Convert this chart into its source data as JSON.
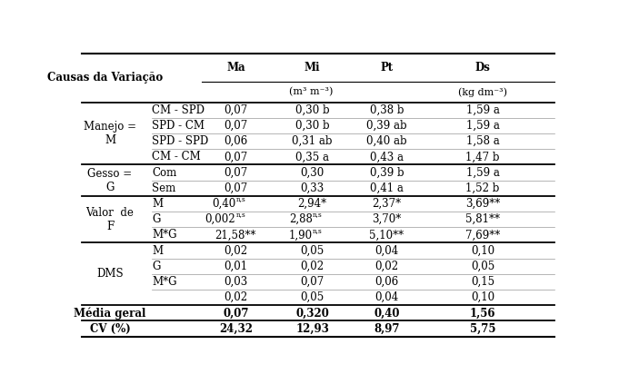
{
  "col_headers": [
    "Ma",
    "Mi",
    "Pt",
    "Ds"
  ],
  "unit_label": "(m³ m⁻³)",
  "ds_unit_label": "(kg dm⁻³)",
  "header_label": "Causas da Variação",
  "rows": [
    {
      "group": "Manejo =\nM",
      "subrow": "CM - SPD",
      "Ma": "0,07",
      "Mi": "0,30 b",
      "Pt": "0,38 b",
      "Ds": "1,59 a"
    },
    {
      "group": "",
      "subrow": "SPD - CM",
      "Ma": "0,07",
      "Mi": "0,30 b",
      "Pt": "0,39 ab",
      "Ds": "1,59 a"
    },
    {
      "group": "",
      "subrow": "SPD - SPD",
      "Ma": "0,06",
      "Mi": "0,31 ab",
      "Pt": "0,40 ab",
      "Ds": "1,58 a"
    },
    {
      "group": "",
      "subrow": "CM - CM",
      "Ma": "0,07",
      "Mi": "0,35 a",
      "Pt": "0,43 a",
      "Ds": "1,47 b"
    },
    {
      "group": "Gesso =\nG",
      "subrow": "Com",
      "Ma": "0,07",
      "Mi": "0,30",
      "Pt": "0,39 b",
      "Ds": "1,59 a"
    },
    {
      "group": "",
      "subrow": "Sem",
      "Ma": "0,07",
      "Mi": "0,33",
      "Pt": "0,41 a",
      "Ds": "1,52 b"
    },
    {
      "group": "Valor  de\nF",
      "subrow": "M",
      "Ma": "0,40^ns",
      "Mi": "2,94*",
      "Pt": "2,37*",
      "Ds": "3,69**"
    },
    {
      "group": "",
      "subrow": "G",
      "Ma": "0,002^ns",
      "Mi": "2,88^ns",
      "Pt": "3,70*",
      "Ds": "5,81**"
    },
    {
      "group": "",
      "subrow": "M*G",
      "Ma": "21,58**",
      "Mi": "1,90^ns",
      "Pt": "5,10**",
      "Ds": "7,69**"
    },
    {
      "group": "DMS",
      "subrow": "M",
      "Ma": "0,02",
      "Mi": "0,05",
      "Pt": "0,04",
      "Ds": "0,10"
    },
    {
      "group": "",
      "subrow": "G",
      "Ma": "0,01",
      "Mi": "0,02",
      "Pt": "0,02",
      "Ds": "0,05"
    },
    {
      "group": "",
      "subrow": "M*G",
      "Ma": "0,03",
      "Mi": "0,07",
      "Pt": "0,06",
      "Ds": "0,15"
    },
    {
      "group": "",
      "subrow": "",
      "Ma": "0,02",
      "Mi": "0,05",
      "Pt": "0,04",
      "Ds": "0,10"
    },
    {
      "group": "Média geral",
      "subrow": "",
      "Ma": "0,07",
      "Mi": "0,320",
      "Pt": "0,40",
      "Ds": "1,56"
    },
    {
      "group": "CV (%)",
      "subrow": "",
      "Ma": "24,32",
      "Mi": "12,93",
      "Pt": "8,97",
      "Ds": "5,75"
    }
  ],
  "bold_groups": [
    "Média geral",
    "CV (%)"
  ],
  "thick_before_rows": [
    0,
    4,
    6,
    9,
    13,
    14,
    15
  ],
  "background_color": "#ffffff",
  "font_size": 8.5,
  "font_family": "serif"
}
